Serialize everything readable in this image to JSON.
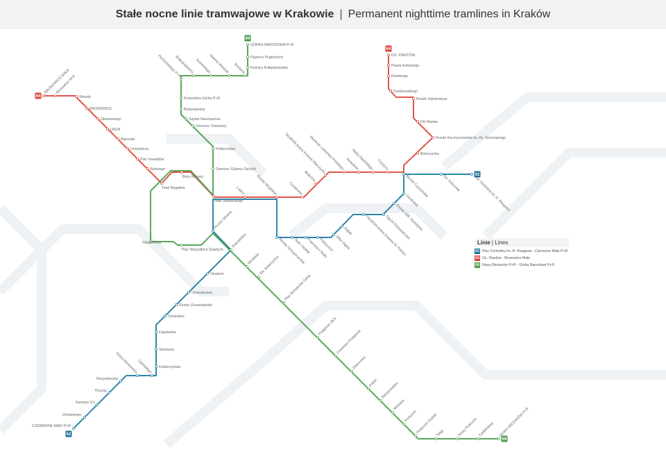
{
  "header": {
    "title_pl": "Stałe nocne linie tramwajowe w Krakowie",
    "separator": "|",
    "title_en": "Permanent nighttime tramlines in Kraków"
  },
  "colors": {
    "line62": "#2e86a8",
    "line64": "#e0554a",
    "line69": "#5aa55a",
    "badge62": "#1f6f95",
    "badge64": "#d9443a",
    "badge69": "#4a9a46"
  },
  "lines": [
    {
      "number": "62",
      "stations": [
        "Plac Centralny im. R. Reagana",
        "Os. Kolorowe",
        "Rondo Czyżyńskie",
        "Centralna",
        "Rondo 308. Dywizjonu",
        "Ogród Doświadczeń",
        "TAURON Arena Kraków Al. Pokoju",
        "Dąbie",
        "Ofiar Dąbia",
        "Fabryczna",
        "Francesco Nullo",
        "Teatr Variété",
        "Rondo Grzegórzeckie",
        "Poczta Główna",
        "Stradom",
        "Orzeszkowej",
        "Rondo Grunwaldzkie",
        "Szwedzka",
        "Kapelanka",
        "Słomiana",
        "Kobierzyńska",
        "Lipińskiego",
        "Górka Borkowska",
        "Norymberska",
        "Ruczaj",
        "Kampus UJ",
        "Chmieleniec",
        "CZERWONE MAKI P+R"
      ]
    },
    {
      "number": "64",
      "stations": [
        "BRONOWICE MAŁE",
        "Bronowice SKA",
        "Wesele",
        "BRONOWICE",
        "Głowackiego",
        "UKEN",
        "Biprostal",
        "Urzędnicza",
        "Plac Inwalidów",
        "Batorego",
        "Teatr Bagatela",
        "Stary Kleparz",
        "Teatr Słowackiego",
        "Lubicz",
        "Rondo Mogilskie",
        "Cystersów",
        "Białucha",
        "TAURON Arena Kraków Wieczysta",
        "Muzeum Lotnictwa Polskiego",
        "Akacjowa",
        "Stella-Sawickiego",
        "Czyżyny",
        "Bieńczycka",
        "Rondo Kocmyrzowskie im. Ks. Gorzelanego",
        "DH Wanda",
        "Rondo Hipokratesa",
        "Dunikowskiego",
        "Kleeberga",
        "Piasta Kołodzieja",
        "OS. PIASTÓW"
      ]
    },
    {
      "number": "69",
      "stations": [
        "GÓRKA NARODOWA P+R",
        "Papierni Prądnickich",
        "Kuźnicy Kołłątajowskiej",
        "Bociana",
        "Siewna Wiadukt",
        "Górnickiego",
        "Białoprądnicka",
        "Pachońskiego P+R",
        "Krowodrza Górka P+R",
        "Bratysławska",
        "Szpital Narutowicza",
        "Dworzec Towarowy",
        "Politechnika",
        "Dworzec Główny Zachód",
        "Filharmonia",
        "Plac Wszystkich Świętych",
        "Starowiślna",
        "Miodowa",
        "Św. Wawrzyńca",
        "Plac Bohaterów Getta",
        "Podgórze SKA",
        "Cmentarz Podgórski",
        "Dworcowa",
        "Kabel",
        "Bieżanowska",
        "Wlotowa",
        "Prokocim",
        "Prokocim Szpital",
        "Teligi",
        "Nowy Prokocim",
        "Ćwiklińskiej",
        "NOWY BIEŻANÓW P+R"
      ]
    }
  ],
  "legend": {
    "title": "Linie",
    "separator": "|",
    "subtitle": "Lines",
    "items": [
      {
        "number": "62",
        "route": "Plac Centralny im. R. Reagana - Czerwone Maki P+R"
      },
      {
        "number": "64",
        "route": "Os. Piastów - Bronowice Małe"
      },
      {
        "number": "69",
        "route": "Nowy Bieżanów P+R - Górka Narodowa P+R"
      }
    ]
  }
}
